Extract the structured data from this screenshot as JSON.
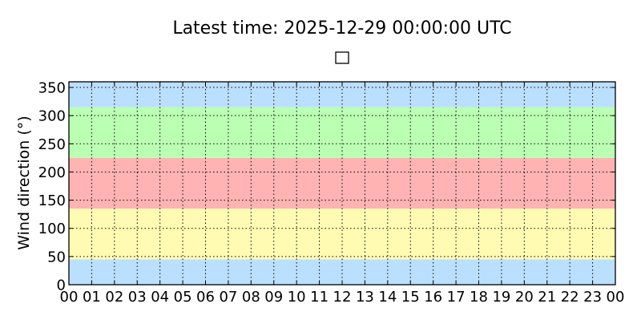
{
  "chart_data": {
    "type": "line",
    "title": "Latest time: 2025-12-29 00:00:00 UTC",
    "xlabel": "",
    "ylabel": "Wind direction (°)",
    "ylim": [
      0,
      360
    ],
    "xlim": [
      0,
      24
    ],
    "x_tick_labels": [
      "00",
      "01",
      "02",
      "03",
      "04",
      "05",
      "06",
      "07",
      "08",
      "09",
      "10",
      "11",
      "12",
      "13",
      "14",
      "15",
      "16",
      "17",
      "18",
      "19",
      "20",
      "21",
      "22",
      "23",
      "00"
    ],
    "y_ticks": [
      0,
      50,
      100,
      150,
      200,
      250,
      300,
      350
    ],
    "grid": true,
    "legend": {
      "placement": "top-center",
      "entries": [
        ""
      ]
    },
    "series": [],
    "bands": [
      {
        "from": 0,
        "to": 45,
        "color": "#bbdfff"
      },
      {
        "from": 45,
        "to": 135,
        "color": "#fffbb3"
      },
      {
        "from": 135,
        "to": 225,
        "color": "#ffb3b3"
      },
      {
        "from": 225,
        "to": 315,
        "color": "#bbffb3"
      },
      {
        "from": 315,
        "to": 360,
        "color": "#bbdfff"
      }
    ]
  }
}
